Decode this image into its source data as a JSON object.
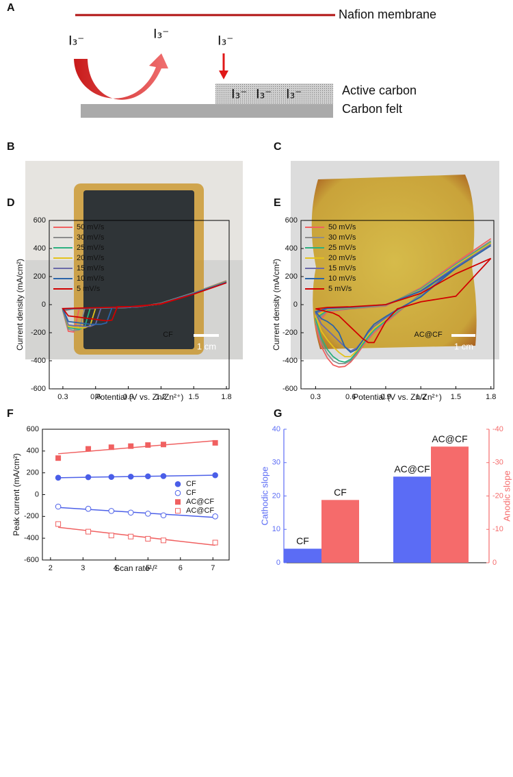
{
  "panels": [
    "A",
    "B",
    "C",
    "D",
    "E",
    "F",
    "G"
  ],
  "diagram": {
    "membrane": "Nafion membrane",
    "species": [
      "I₃⁻",
      "I₃⁻",
      "I₃⁻",
      "I₃⁻",
      "I₃⁻",
      "I₃⁻"
    ],
    "layers": [
      "Active carbon",
      "Carbon felt"
    ]
  },
  "photos": {
    "scale_bars": [
      "1 cm",
      "1 cm"
    ]
  },
  "chart_data": [
    {
      "type": "line",
      "annotation": "CF",
      "legend": "upper left",
      "x_label": "Potential (V vs. Zn/Zn²⁺)",
      "y_label": "Current density (mA/cm²)",
      "xlim": [
        0.175,
        1.825
      ],
      "xticks": [
        0.3,
        0.6,
        0.9,
        1.2,
        1.5,
        1.8
      ],
      "ylim": [
        -600,
        600
      ],
      "yticks": [
        -600,
        -400,
        -200,
        0,
        200,
        400,
        600
      ],
      "x": [
        1.8,
        1.5,
        1.2,
        1.0,
        0.9,
        0.8,
        0.75,
        0.7,
        0.65,
        0.6,
        0.55,
        0.5,
        0.45,
        0.4,
        0.35,
        0.3,
        0.4,
        0.6,
        0.9,
        1.2,
        1.5,
        1.8
      ],
      "series": [
        {
          "name": "50 mV/s",
          "color": "#f06060",
          "values": [
            170,
            85,
            10,
            -15,
            -18,
            -20,
            -22,
            -22,
            -24,
            -25,
            -26,
            -28,
            -30,
            -195,
            -190,
            -45,
            -30,
            -25,
            -20,
            5,
            85,
            170
          ]
        },
        {
          "name": "30 mV/s",
          "color": "#8c8c8c",
          "values": [
            168,
            85,
            10,
            -15,
            -18,
            -20,
            -22,
            -22,
            -24,
            -25,
            -26,
            -28,
            -180,
            -185,
            -175,
            -40,
            -30,
            -25,
            -20,
            5,
            85,
            168
          ]
        },
        {
          "name": "25 mV/s",
          "color": "#2bb07f",
          "values": [
            166,
            84,
            10,
            -15,
            -18,
            -20,
            -22,
            -22,
            -24,
            -25,
            -26,
            -160,
            -175,
            -170,
            -165,
            -40,
            -30,
            -25,
            -20,
            5,
            84,
            166
          ]
        },
        {
          "name": "20 mV/s",
          "color": "#e3c21c",
          "values": [
            164,
            83,
            9,
            -15,
            -18,
            -20,
            -22,
            -22,
            -24,
            -25,
            -150,
            -165,
            -165,
            -160,
            -155,
            -35,
            -30,
            -25,
            -20,
            5,
            83,
            164
          ]
        },
        {
          "name": "15 mV/s",
          "color": "#6a6aa8",
          "values": [
            162,
            82,
            9,
            -15,
            -18,
            -20,
            -22,
            -22,
            -24,
            -140,
            -155,
            -155,
            -150,
            -150,
            -145,
            -35,
            -30,
            -25,
            -20,
            5,
            82,
            162
          ]
        },
        {
          "name": "10 mV/s",
          "color": "#2a64a8",
          "values": [
            160,
            80,
            8,
            -15,
            -18,
            -20,
            -22,
            -130,
            -140,
            -140,
            -140,
            -135,
            -130,
            -125,
            -120,
            -30,
            -28,
            -24,
            -18,
            5,
            80,
            160
          ]
        },
        {
          "name": "5 mV/s",
          "color": "#d00000",
          "values": [
            155,
            75,
            6,
            -12,
            -14,
            -15,
            -110,
            -115,
            -110,
            -105,
            -100,
            -95,
            -90,
            -85,
            -80,
            -28,
            -26,
            -22,
            -15,
            4,
            75,
            155
          ]
        }
      ]
    },
    {
      "type": "line",
      "annotation": "AC@CF",
      "legend": "upper left",
      "x_label": "Potential (V vs. Zn/Zn²⁺)",
      "y_label": "Current density (mA/cm²)",
      "xlim": [
        0.175,
        1.825
      ],
      "xticks": [
        0.3,
        0.6,
        0.9,
        1.2,
        1.5,
        1.8
      ],
      "ylim": [
        -600,
        600
      ],
      "yticks": [
        -600,
        -400,
        -200,
        0,
        200,
        400,
        600
      ],
      "x": [
        1.8,
        1.5,
        1.2,
        1.0,
        0.9,
        0.8,
        0.75,
        0.7,
        0.65,
        0.6,
        0.55,
        0.5,
        0.45,
        0.4,
        0.35,
        0.3,
        0.4,
        0.6,
        0.9,
        1.2,
        1.5,
        1.8
      ],
      "series": [
        {
          "name": "50 mV/s",
          "color": "#f06060",
          "values": [
            470,
            300,
            80,
            -60,
            -130,
            -200,
            -250,
            -300,
            -360,
            -410,
            -440,
            -445,
            -430,
            -380,
            -300,
            -150,
            -50,
            -30,
            -10,
            120,
            300,
            470
          ]
        },
        {
          "name": "30 mV/s",
          "color": "#8c8c8c",
          "values": [
            455,
            290,
            75,
            -55,
            -120,
            -190,
            -240,
            -290,
            -350,
            -400,
            -420,
            -420,
            -400,
            -350,
            -270,
            -120,
            -45,
            -28,
            -8,
            115,
            290,
            455
          ]
        },
        {
          "name": "25 mV/s",
          "color": "#2bb07f",
          "values": [
            445,
            285,
            70,
            -50,
            -115,
            -180,
            -230,
            -285,
            -340,
            -390,
            -410,
            -400,
            -370,
            -320,
            -240,
            -100,
            -40,
            -25,
            -5,
            110,
            285,
            445
          ]
        },
        {
          "name": "20 mV/s",
          "color": "#e3c21c",
          "values": [
            440,
            280,
            65,
            -45,
            -105,
            -170,
            -215,
            -270,
            -330,
            -370,
            -370,
            -340,
            -300,
            -250,
            -190,
            -80,
            -35,
            -22,
            -5,
            105,
            280,
            440
          ]
        },
        {
          "name": "15 mV/s",
          "color": "#6a6aa8",
          "values": [
            430,
            270,
            60,
            -40,
            -95,
            -155,
            -200,
            -260,
            -310,
            -330,
            -300,
            -260,
            -220,
            -180,
            -140,
            -60,
            -30,
            -20,
            -3,
            100,
            270,
            430
          ]
        },
        {
          "name": "10 mV/s",
          "color": "#2a64a8",
          "values": [
            420,
            260,
            55,
            -35,
            -85,
            -140,
            -190,
            -260,
            -320,
            -340,
            -300,
            -200,
            -150,
            -120,
            -100,
            -50,
            -25,
            -18,
            0,
            95,
            260,
            420
          ]
        },
        {
          "name": "5 mV/s",
          "color": "#d00000",
          "values": [
            330,
            60,
            20,
            -30,
            -120,
            -270,
            -270,
            -240,
            -200,
            -160,
            -120,
            -80,
            -60,
            -50,
            -40,
            -30,
            -20,
            -15,
            0,
            80,
            220,
            330
          ]
        }
      ]
    },
    {
      "type": "scatter",
      "legend": "center right",
      "x_label": "Scan rate¹/²",
      "y_label": "Peak current (mA/cm²)",
      "xlim": [
        1.75,
        7.5
      ],
      "xticks": [
        2,
        3,
        4,
        5,
        6,
        7
      ],
      "ylim": [
        -600,
        600
      ],
      "yticks": [
        -600,
        -400,
        -200,
        0,
        200,
        400,
        600
      ],
      "x": [
        2.236,
        3.162,
        3.873,
        4.472,
        5,
        5.477,
        7.071
      ],
      "series": [
        {
          "name": "CF",
          "color": "#4a5ee8",
          "marker": "circle",
          "values": [
            155,
            160,
            162,
            165,
            168,
            170,
            178
          ],
          "fit": [
            155,
            178
          ]
        },
        {
          "name": "CF",
          "color": "#4a5ee8",
          "marker": "circle-open",
          "values": [
            -110,
            -130,
            -150,
            -165,
            -175,
            -190,
            -200
          ],
          "fit": [
            -118,
            -210
          ]
        },
        {
          "name": "AC@CF",
          "color": "#f06060",
          "marker": "square",
          "values": [
            335,
            420,
            435,
            445,
            455,
            460,
            475
          ],
          "fit": [
            375,
            495
          ]
        },
        {
          "name": "AC@CF",
          "color": "#f06060",
          "marker": "square-open",
          "values": [
            -270,
            -340,
            -375,
            -385,
            -405,
            -420,
            -440
          ],
          "fit": [
            -300,
            -465
          ]
        }
      ]
    },
    {
      "type": "bar",
      "y_label": "Cathodic slope",
      "y2_label": "Anodic slope",
      "ylim": [
        0,
        40
      ],
      "yticks": [
        0,
        10,
        20,
        30,
        40
      ],
      "y2lim": [
        0,
        -40
      ],
      "y2ticks": [
        0,
        -10,
        -20,
        -30,
        -40
      ],
      "series": [
        {
          "color": "#5b6cf5",
          "values": [
            4.2,
            25.8
          ],
          "labels": [
            "CF",
            "AC@CF"
          ]
        },
        {
          "color": "#f56b6b",
          "axis": "y2",
          "values": [
            -18.8,
            -34.8
          ],
          "labels": [
            "CF",
            "AC@CF"
          ]
        }
      ]
    }
  ]
}
